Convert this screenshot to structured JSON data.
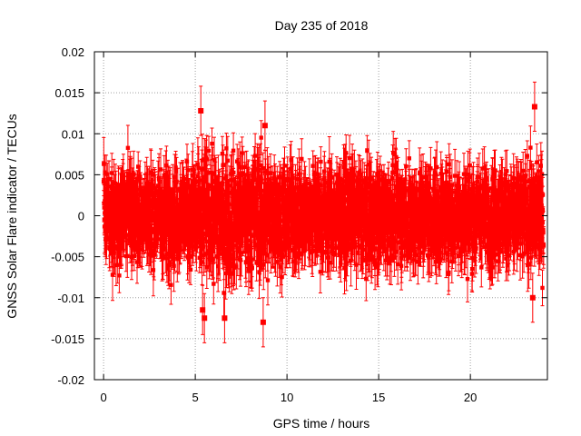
{
  "chart_data": {
    "type": "scatter",
    "title": "Day 235 of 2018",
    "xlabel": "GPS time / hours",
    "ylabel": "GNSS Solar Flare indicator / TECUs",
    "xlim": [
      -0.5,
      24.2
    ],
    "ylim": [
      -0.02,
      0.02
    ],
    "x_ticks": [
      0,
      5,
      10,
      15,
      20
    ],
    "x_tick_labels": [
      "0",
      "5",
      "10",
      "15",
      "20"
    ],
    "y_ticks": [
      -0.02,
      -0.015,
      -0.01,
      -0.005,
      0,
      0.005,
      0.01,
      0.015,
      0.02
    ],
    "y_tick_labels": [
      "-0.02",
      "-0.015",
      "-0.01",
      "-0.005",
      "0",
      "0.005",
      "0.01",
      "0.015",
      "0.02"
    ],
    "grid": true,
    "series": [
      {
        "name": "GNSS Solar Flare indicator",
        "marker": "square",
        "error_bars": true,
        "color": "#ff0000",
        "x_range": [
          0,
          24
        ],
        "sample_interval_hours": 0.0083,
        "typical_spread": 0.004,
        "typical_error": 0.0025,
        "notable_points": [
          {
            "x": 5.3,
            "y": 0.0128
          },
          {
            "x": 5.4,
            "y": -0.0115
          },
          {
            "x": 5.5,
            "y": -0.0125
          },
          {
            "x": 6.6,
            "y": -0.0125
          },
          {
            "x": 8.8,
            "y": 0.011
          },
          {
            "x": 8.7,
            "y": -0.013
          },
          {
            "x": 23.5,
            "y": 0.0133
          },
          {
            "x": 23.4,
            "y": -0.01
          }
        ]
      }
    ]
  }
}
